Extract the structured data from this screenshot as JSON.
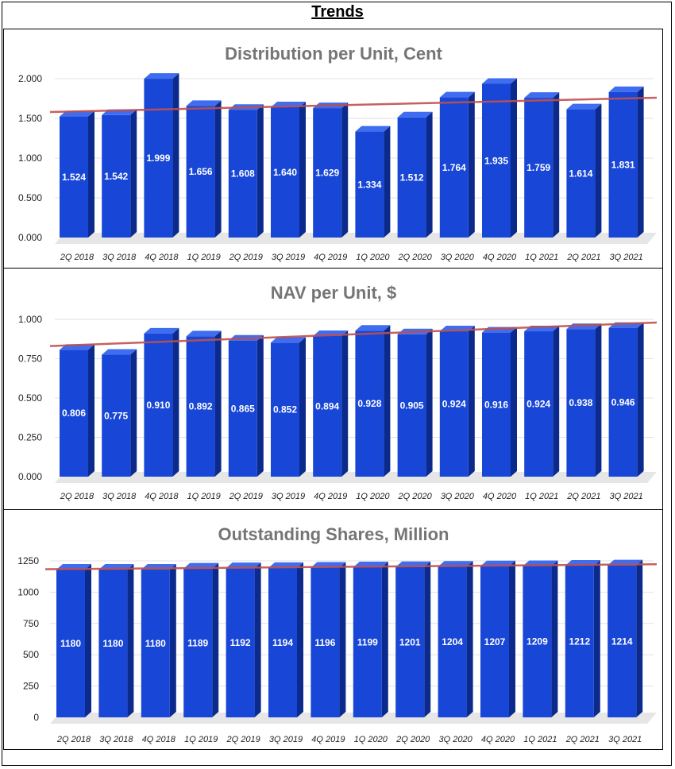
{
  "page": {
    "title": "Trends"
  },
  "colors": {
    "bar_front": "#1846d6",
    "bar_top": "#3f6df0",
    "bar_side": "#0b2a8c",
    "trend": "#c0504d",
    "grid": "#e2e2e2",
    "floor": "#e6e6e6"
  },
  "chart_data": [
    {
      "type": "bar",
      "title": "Distribution per Unit, Cent",
      "categories": [
        "2Q 2018",
        "3Q 2018",
        "4Q 2018",
        "1Q 2019",
        "2Q 2019",
        "3Q 2019",
        "4Q 2019",
        "1Q 2020",
        "2Q 2020",
        "3Q 2020",
        "4Q 2020",
        "1Q 2021",
        "2Q 2021",
        "3Q 2021"
      ],
      "values": [
        1.524,
        1.542,
        1.999,
        1.656,
        1.608,
        1.64,
        1.629,
        1.334,
        1.512,
        1.764,
        1.935,
        1.759,
        1.614,
        1.831
      ],
      "data_labels": [
        "1.524",
        "1.542",
        "1.999",
        "1.656",
        "1.608",
        "1.640",
        "1.629",
        "1.334",
        "1.512",
        "1.764",
        "1.935",
        "1.759",
        "1.614",
        "1.831"
      ],
      "yticks": [
        "0.000",
        "0.500",
        "1.000",
        "1.500",
        "2.000"
      ],
      "ylim": [
        0,
        2.0
      ],
      "trendline": [
        1.58,
        1.76
      ],
      "xlabel": "",
      "ylabel": "",
      "grid": true,
      "legend": "none"
    },
    {
      "type": "bar",
      "title": "NAV per Unit, $",
      "categories": [
        "2Q 2018",
        "3Q 2018",
        "4Q 2018",
        "1Q 2019",
        "2Q 2019",
        "3Q 2019",
        "4Q 2019",
        "1Q 2020",
        "2Q 2020",
        "3Q 2020",
        "4Q 2020",
        "1Q 2021",
        "2Q 2021",
        "3Q 2021"
      ],
      "values": [
        0.806,
        0.775,
        0.91,
        0.892,
        0.865,
        0.852,
        0.894,
        0.928,
        0.905,
        0.924,
        0.916,
        0.924,
        0.938,
        0.946
      ],
      "data_labels": [
        "0.806",
        "0.775",
        "0.910",
        "0.892",
        "0.865",
        "0.852",
        "0.894",
        "0.928",
        "0.905",
        "0.924",
        "0.916",
        "0.924",
        "0.938",
        "0.946"
      ],
      "yticks": [
        "0.000",
        "0.250",
        "0.500",
        "0.750",
        "1.000"
      ],
      "ylim": [
        0,
        1.0
      ],
      "trendline": [
        0.83,
        0.98
      ],
      "xlabel": "",
      "ylabel": "",
      "grid": true,
      "legend": "none"
    },
    {
      "type": "bar",
      "title": "Outstanding Shares, Million",
      "categories": [
        "2Q 2018",
        "3Q 2018",
        "4Q 2018",
        "1Q 2019",
        "2Q 2019",
        "3Q 2019",
        "4Q 2019",
        "1Q 2020",
        "2Q 2020",
        "3Q 2020",
        "4Q 2020",
        "1Q 2021",
        "2Q 2021",
        "3Q 2021"
      ],
      "values": [
        1180,
        1180,
        1180,
        1189,
        1192,
        1194,
        1196,
        1199,
        1201,
        1204,
        1207,
        1209,
        1212,
        1214
      ],
      "data_labels": [
        "1180",
        "1180",
        "1180",
        "1189",
        "1192",
        "1194",
        "1196",
        "1199",
        "1201",
        "1204",
        "1207",
        "1209",
        "1212",
        "1214"
      ],
      "yticks": [
        "0",
        "250",
        "500",
        "750",
        "1000",
        "1250"
      ],
      "ylim": [
        0,
        1250
      ],
      "trendline": [
        1183,
        1223
      ],
      "xlabel": "",
      "ylabel": "",
      "grid": true,
      "legend": "none"
    }
  ]
}
